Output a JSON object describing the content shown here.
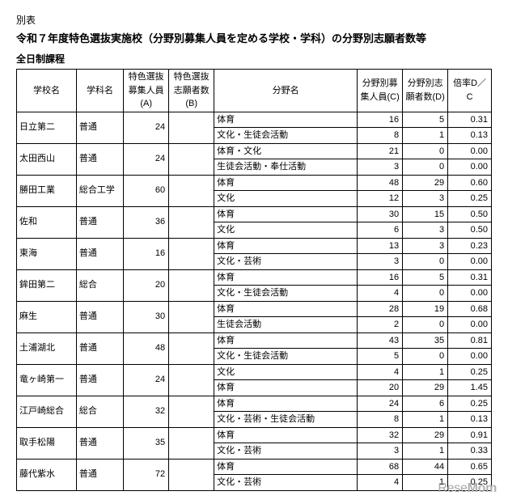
{
  "pretitle": "別表",
  "title": "令和７年度特色選抜実施校（分野別募集人員を定める学校・学科）の分野別志願者数等",
  "subtitle": "全日制課程",
  "headers": {
    "school": "学校名",
    "dept": "学科名",
    "colA": "特色選抜募集人員(A)",
    "colB": "特色選抜志願者数(B)",
    "field": "分野名",
    "colC": "分野別募集人員(C)",
    "colD": "分野別志願者数(D)",
    "rate": "倍率D／C"
  },
  "colWidths": {
    "school": 66,
    "dept": 52,
    "colA": 50,
    "colB": 50,
    "field": 158,
    "colC": 50,
    "colD": 50,
    "rate": 48
  },
  "colors": {
    "border": "#000000",
    "bg": "#ffffff",
    "text": "#000000",
    "watermark": "#a8a8a8"
  },
  "watermark": {
    "left": "Rese",
    "right": "Mom"
  },
  "schools": [
    {
      "name": "日立第二",
      "dept": "普通",
      "A": 24,
      "B": "",
      "fields": [
        {
          "field": "体育",
          "C": 16,
          "D": 5,
          "rate": "0.31"
        },
        {
          "field": "文化・生徒会活動",
          "C": 8,
          "D": 1,
          "rate": "0.13"
        }
      ]
    },
    {
      "name": "太田西山",
      "dept": "普通",
      "A": 24,
      "B": "",
      "fields": [
        {
          "field": "体育・文化",
          "C": 21,
          "D": 0,
          "rate": "0.00"
        },
        {
          "field": "生徒会活動・奉仕活動",
          "C": 3,
          "D": 0,
          "rate": "0.00"
        }
      ]
    },
    {
      "name": "勝田工業",
      "dept": "総合工学",
      "A": 60,
      "B": "",
      "fields": [
        {
          "field": "体育",
          "C": 48,
          "D": 29,
          "rate": "0.60"
        },
        {
          "field": "文化",
          "C": 12,
          "D": 3,
          "rate": "0.25"
        }
      ]
    },
    {
      "name": "佐和",
      "dept": "普通",
      "A": 36,
      "B": "",
      "fields": [
        {
          "field": "体育",
          "C": 30,
          "D": 15,
          "rate": "0.50"
        },
        {
          "field": "文化",
          "C": 6,
          "D": 3,
          "rate": "0.50"
        }
      ]
    },
    {
      "name": "東海",
      "dept": "普通",
      "A": 16,
      "B": "",
      "fields": [
        {
          "field": "体育",
          "C": 13,
          "D": 3,
          "rate": "0.23"
        },
        {
          "field": "文化・芸術",
          "C": 3,
          "D": 0,
          "rate": "0.00"
        }
      ]
    },
    {
      "name": "鉾田第二",
      "dept": "総合",
      "A": 20,
      "B": "",
      "fields": [
        {
          "field": "体育",
          "C": 16,
          "D": 5,
          "rate": "0.31"
        },
        {
          "field": "文化・生徒会活動",
          "C": 4,
          "D": 0,
          "rate": "0.00"
        }
      ]
    },
    {
      "name": "麻生",
      "dept": "普通",
      "A": 30,
      "B": "",
      "fields": [
        {
          "field": "体育",
          "C": 28,
          "D": 19,
          "rate": "0.68"
        },
        {
          "field": "生徒会活動",
          "C": 2,
          "D": 0,
          "rate": "0.00"
        }
      ]
    },
    {
      "name": "土浦湖北",
      "dept": "普通",
      "A": 48,
      "B": "",
      "fields": [
        {
          "field": "体育",
          "C": 43,
          "D": 35,
          "rate": "0.81"
        },
        {
          "field": "文化・生徒会活動",
          "C": 5,
          "D": 0,
          "rate": "0.00"
        }
      ]
    },
    {
      "name": "竜ヶ崎第一",
      "dept": "普通",
      "A": 24,
      "B": "",
      "fields": [
        {
          "field": "文化",
          "C": 4,
          "D": 1,
          "rate": "0.25"
        },
        {
          "field": "体育",
          "C": 20,
          "D": 29,
          "rate": "1.45"
        }
      ]
    },
    {
      "name": "江戸崎総合",
      "dept": "総合",
      "A": 32,
      "B": "",
      "fields": [
        {
          "field": "体育",
          "C": 24,
          "D": 6,
          "rate": "0.25"
        },
        {
          "field": "文化・芸術・生徒会活動",
          "C": 8,
          "D": 1,
          "rate": "0.13"
        }
      ]
    },
    {
      "name": "取手松陽",
      "dept": "普通",
      "A": 35,
      "B": "",
      "fields": [
        {
          "field": "体育",
          "C": 32,
          "D": 29,
          "rate": "0.91"
        },
        {
          "field": "文化・芸術",
          "C": 3,
          "D": 1,
          "rate": "0.33"
        }
      ]
    },
    {
      "name": "藤代紫水",
      "dept": "普通",
      "A": 72,
      "B": "",
      "fields": [
        {
          "field": "体育",
          "C": 68,
          "D": 44,
          "rate": "0.65"
        },
        {
          "field": "文化・芸術",
          "C": 4,
          "D": 1,
          "rate": "0.25"
        }
      ]
    }
  ]
}
